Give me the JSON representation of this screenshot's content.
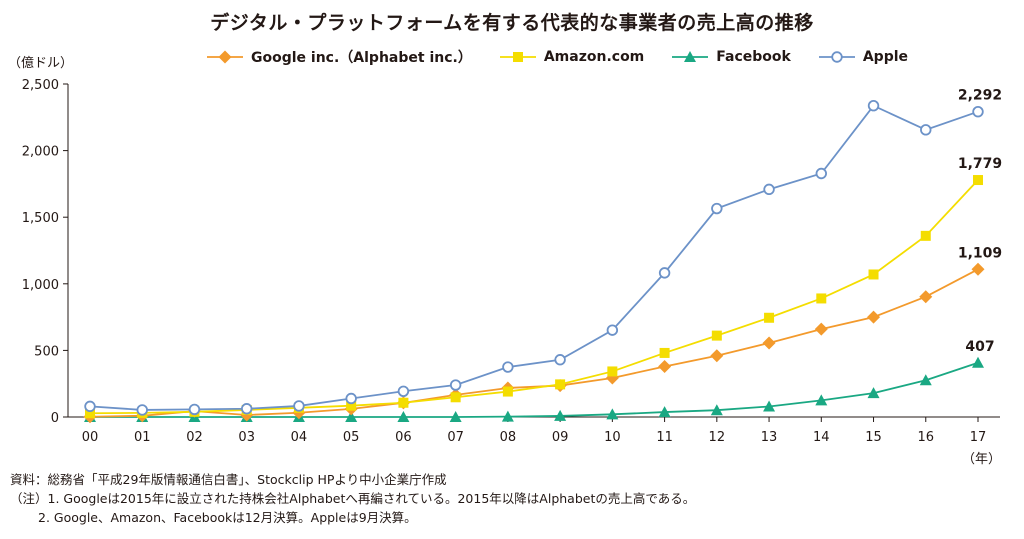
{
  "chart_data": {
    "type": "line",
    "title": "デジタル・プラットフォームを有する代表的な事業者の売上高の推移",
    "ylabel": "（億ドル）",
    "xlabel": "（年）",
    "categories": [
      "00",
      "01",
      "02",
      "03",
      "04",
      "05",
      "06",
      "07",
      "08",
      "09",
      "10",
      "11",
      "12",
      "13",
      "14",
      "15",
      "16",
      "17"
    ],
    "ylim": [
      0,
      2500
    ],
    "yticks": [
      0,
      500,
      1000,
      1500,
      2000,
      2500
    ],
    "ytick_labels": [
      "0",
      "500",
      "1,000",
      "1,500",
      "2,000",
      "2,500"
    ],
    "grid": false,
    "legend_position": "top",
    "series": [
      {
        "name": "Google inc.（Alphabet inc.）",
        "color": "#f39a2c",
        "marker": "diamond",
        "values": [
          2,
          9,
          44,
          15,
          32,
          61,
          106,
          166,
          218,
          236,
          293,
          379,
          460,
          556,
          660,
          750,
          903,
          1109
        ]
      },
      {
        "name": "Amazon.com",
        "color": "#f4dd00",
        "marker": "square",
        "values": [
          28,
          31,
          39,
          53,
          69,
          85,
          107,
          148,
          191,
          245,
          342,
          481,
          611,
          745,
          890,
          1070,
          1360,
          1779
        ]
      },
      {
        "name": "Facebook",
        "color": "#1aa883",
        "marker": "triangle",
        "values": [
          0,
          0,
          0,
          0,
          0,
          0,
          0,
          0,
          3,
          8,
          20,
          37,
          51,
          79,
          125,
          179,
          276,
          407
        ]
      },
      {
        "name": "Apple",
        "color": "#6c92c8",
        "marker": "circle",
        "values": [
          80,
          53,
          57,
          62,
          83,
          139,
          193,
          240,
          375,
          430,
          652,
          1082,
          1565,
          1709,
          1828,
          2337,
          2156,
          2292
        ]
      }
    ],
    "annotations": [
      {
        "series": 3,
        "index": 17,
        "text": "2,292"
      },
      {
        "series": 1,
        "index": 17,
        "text": "1,779"
      },
      {
        "series": 0,
        "index": 17,
        "text": "1,109"
      },
      {
        "series": 2,
        "index": 17,
        "text": "407"
      }
    ]
  },
  "notes": {
    "source": "資料：総務省「平成29年版情報通信白書」、Stockclip HPより中小企業庁作成",
    "note1": "（注）1. Googleは2015年に設立された持株会社Alphabetへ再編されている。2015年以降はAlphabetの売上高である。",
    "note2": "2. Google、Amazon、Facebookは12月決算。Appleは9月決算。"
  }
}
